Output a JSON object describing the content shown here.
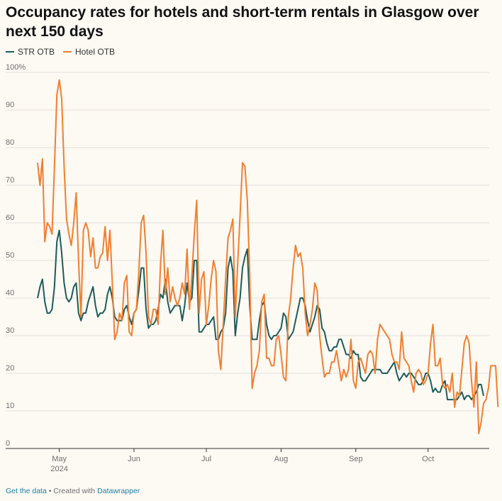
{
  "colors": {
    "str": "#1c5c5a",
    "hotel": "#f07f30",
    "grid": "#e2e0dc",
    "background": "#fdf9f3"
  },
  "footer": {
    "get_data": "Get the data",
    "separator": " • Created with ",
    "tool": "Datawrapper"
  },
  "chart_data": {
    "type": "line",
    "title": "Occupancy rates for hotels and short-term rentals in Glasgow over next 150 days",
    "xlabel": "",
    "ylabel": "",
    "ylim": [
      0,
      100
    ],
    "yticks": [
      {
        "value": 0,
        "label": "0"
      },
      {
        "value": 10,
        "label": "10"
      },
      {
        "value": 20,
        "label": "20"
      },
      {
        "value": 30,
        "label": "30"
      },
      {
        "value": 40,
        "label": "40"
      },
      {
        "value": 50,
        "label": "50"
      },
      {
        "value": 60,
        "label": "60"
      },
      {
        "value": 70,
        "label": "70"
      },
      {
        "value": 80,
        "label": "80"
      },
      {
        "value": 90,
        "label": "90"
      },
      {
        "value": 100,
        "label": "100%"
      }
    ],
    "x_start": "2024-04-22",
    "xticks": [
      {
        "day": 9,
        "label": "May",
        "sublabel": "2024"
      },
      {
        "day": 40,
        "label": "Jun",
        "sublabel": ""
      },
      {
        "day": 70,
        "label": "Jul",
        "sublabel": ""
      },
      {
        "day": 101,
        "label": "Aug",
        "sublabel": ""
      },
      {
        "day": 132,
        "label": "Sep",
        "sublabel": ""
      },
      {
        "day": 162,
        "label": "Oct",
        "sublabel": ""
      }
    ],
    "legend": [
      "STR OTB",
      "Hotel OTB"
    ],
    "series": [
      {
        "name": "STR OTB",
        "color": "#1c5c5a",
        "values": [
          40,
          43,
          45,
          39,
          36,
          36,
          37,
          43,
          55,
          58,
          52,
          44,
          40,
          39,
          40,
          43,
          44,
          36,
          34,
          36,
          36,
          39,
          41,
          43,
          38,
          35,
          36,
          36,
          37,
          41,
          43,
          40,
          35,
          34,
          34,
          34,
          37,
          38,
          35,
          33,
          36,
          37,
          42,
          48,
          48,
          37,
          32,
          33,
          33,
          34,
          37,
          41,
          40,
          45,
          39,
          36,
          37,
          38,
          38,
          38,
          34,
          38,
          44,
          39,
          40,
          50,
          50,
          31,
          31,
          32,
          33,
          33,
          34,
          35,
          29,
          29,
          31,
          32,
          36,
          48,
          51,
          47,
          30,
          36,
          40,
          48,
          51,
          53,
          38,
          29,
          29,
          29,
          34,
          38,
          39,
          33,
          30,
          29,
          30,
          30,
          31,
          32,
          36,
          35,
          29,
          30,
          31,
          34,
          37,
          40,
          40,
          38,
          34,
          31,
          33,
          35,
          38,
          37,
          32,
          31,
          28,
          26,
          26,
          27,
          27,
          29,
          29,
          27,
          25,
          25,
          24,
          26,
          25,
          25,
          19,
          18,
          18,
          19,
          20,
          21,
          21,
          21,
          21,
          20,
          20,
          20,
          21,
          22,
          23,
          20,
          18,
          19,
          20,
          19,
          20,
          20,
          19,
          18,
          17,
          17,
          18,
          20,
          20,
          18,
          15,
          16,
          15,
          15,
          17,
          18,
          13,
          13,
          13,
          13,
          13,
          14,
          15,
          13,
          14,
          14,
          13,
          14,
          15,
          17,
          17,
          14
        ]
      },
      {
        "name": "Hotel OTB",
        "color": "#f07f30",
        "values": [
          76,
          70,
          77,
          55,
          60,
          59,
          57,
          75,
          94,
          98,
          93,
          75,
          61,
          57,
          54,
          60,
          68,
          50,
          35,
          58,
          60,
          58,
          51,
          56,
          48,
          48,
          51,
          52,
          59,
          50,
          58,
          44,
          29,
          31,
          36,
          34,
          44,
          46,
          31,
          30,
          36,
          37,
          47,
          60,
          62,
          52,
          35,
          33,
          37,
          37,
          33,
          49,
          58,
          41,
          48,
          39,
          43,
          40,
          38,
          40,
          44,
          41,
          53,
          37,
          46,
          57,
          66,
          36,
          45,
          47,
          33,
          38,
          45,
          50,
          47,
          26,
          21,
          33,
          45,
          56,
          58,
          61,
          35,
          49,
          62,
          76,
          75,
          66,
          46,
          16,
          20,
          22,
          26,
          39,
          41,
          24,
          24,
          22,
          22,
          29,
          30,
          25,
          19,
          18,
          35,
          40,
          48,
          54,
          51,
          52,
          48,
          36,
          30,
          33,
          37,
          44,
          42,
          30,
          24,
          19,
          20,
          20,
          23,
          23,
          26,
          22,
          18,
          21,
          19,
          21,
          29,
          18,
          16,
          23,
          24,
          22,
          20,
          25,
          26,
          25,
          20,
          29,
          33,
          32,
          31,
          30,
          29,
          25,
          23,
          23,
          21,
          31,
          24,
          23,
          22,
          18,
          15,
          20,
          21,
          20,
          17,
          18,
          20,
          28,
          33,
          22,
          22,
          24,
          17,
          16,
          17,
          15,
          20,
          11,
          15,
          14,
          21,
          28,
          30,
          28,
          18,
          11,
          23,
          4,
          7,
          12,
          13,
          16,
          22,
          22,
          22,
          11
        ]
      }
    ]
  }
}
